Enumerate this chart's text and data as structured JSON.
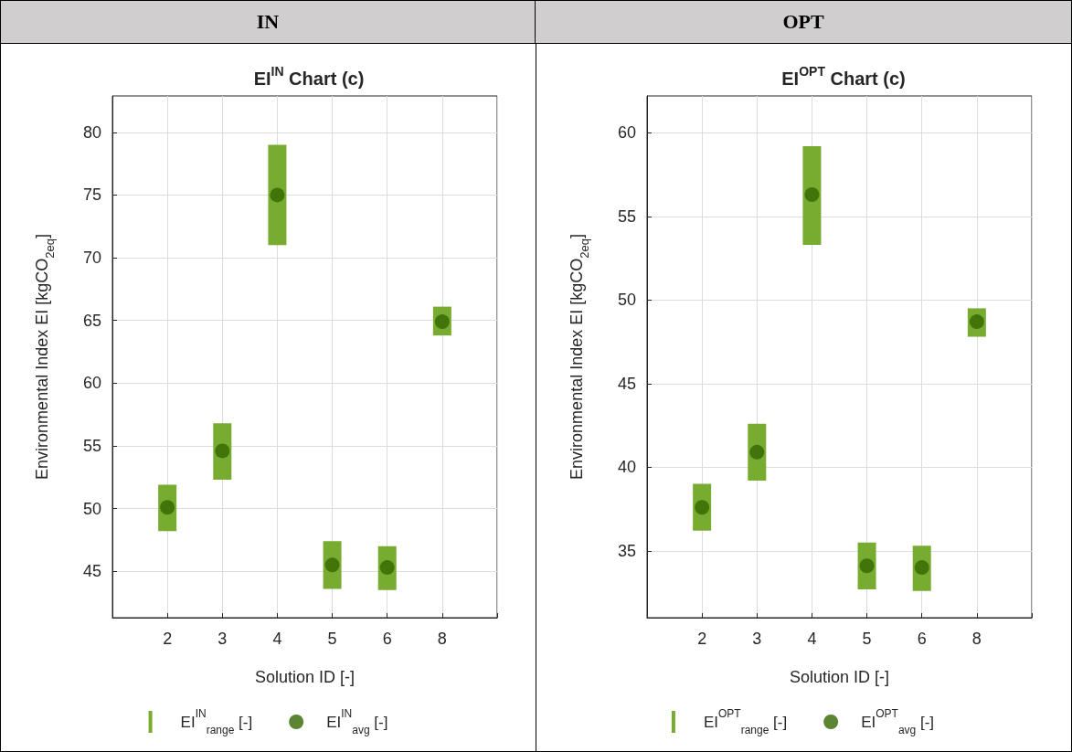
{
  "chart_data": [
    {
      "type": "bar",
      "title": "IN",
      "subtitle": "EI$^{IN}$ Chart (c)",
      "xlabel": "Solution ID [-]",
      "ylabel": "Environmental Index EI [kgCO$_{2eq}$]",
      "categories": [
        "2",
        "3",
        "4",
        "5",
        "6",
        "8"
      ],
      "ylim": [
        41.3,
        82.9
      ],
      "yticks": [
        45,
        50,
        55,
        60,
        65,
        70,
        75,
        80
      ],
      "grid": true,
      "legend": "bottom",
      "series": [
        {
          "name": "EI$^{IN}$$_{range}$ [-]",
          "type": "bar",
          "color": "#77ac30",
          "base": [
            48.2,
            52.3,
            71.0,
            43.6,
            43.5,
            63.8
          ],
          "values": [
            3.7,
            4.5,
            8.0,
            3.8,
            3.5,
            2.3
          ]
        },
        {
          "name": "EI$^{IN}$$_{avg}$ [-]",
          "type": "scatter",
          "marker": "circle",
          "color": "#336600",
          "values": [
            50.1,
            54.6,
            75.0,
            45.5,
            45.3,
            64.9
          ]
        }
      ]
    },
    {
      "type": "bar",
      "title": "OPT",
      "subtitle": "EI$^{OPT}$ Chart (c)",
      "xlabel": "Solution ID [-]",
      "ylabel": "Environmental Index EI [kgCO$_{2eq}$]",
      "categories": [
        "2",
        "3",
        "4",
        "5",
        "6",
        "8"
      ],
      "ylim": [
        31.0,
        62.2
      ],
      "yticks": [
        35,
        40,
        45,
        50,
        55,
        60
      ],
      "grid": true,
      "legend": "bottom",
      "series": [
        {
          "name": "EI$^{OPT}$$_{range}$ [-]",
          "type": "bar",
          "color": "#77ac30",
          "base": [
            36.2,
            39.2,
            53.3,
            32.7,
            32.6,
            47.8
          ],
          "values": [
            2.8,
            3.4,
            5.9,
            2.8,
            2.7,
            1.7
          ]
        },
        {
          "name": "EI$^{OPT}$$_{avg}$ [-]",
          "type": "scatter",
          "marker": "circle",
          "color": "#336600",
          "values": [
            37.6,
            40.9,
            56.3,
            34.1,
            34.0,
            48.7
          ]
        }
      ]
    }
  ]
}
